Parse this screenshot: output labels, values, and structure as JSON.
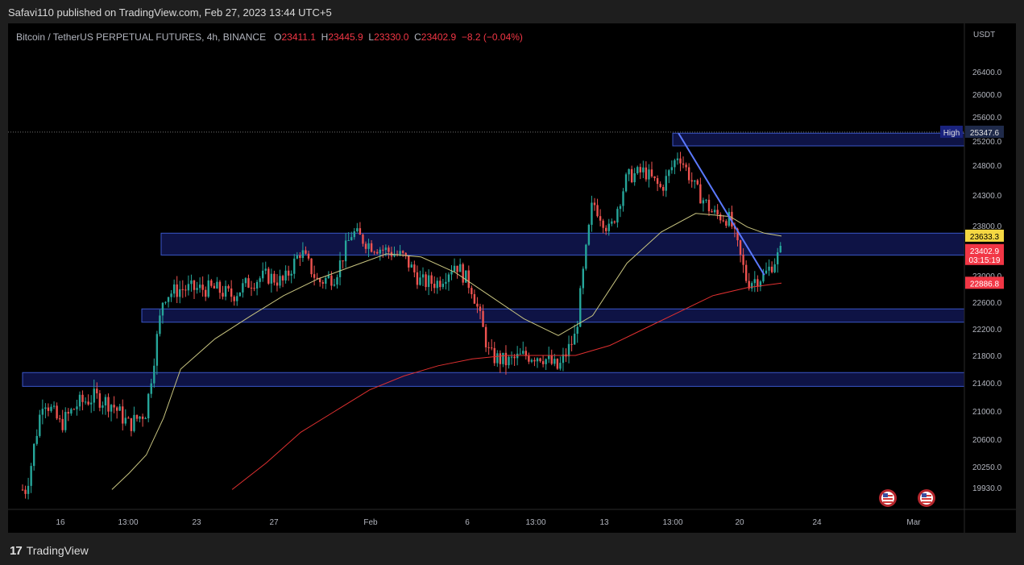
{
  "caption": "Safavi110 published on TradingView.com, Feb 27, 2023 13:44 UTC+5",
  "legend": {
    "symbol": "Bitcoin / TetherUS PERPETUAL FUTURES, 4h, BINANCE",
    "o_label": "O",
    "o_value": "23411.1",
    "h_label": "H",
    "h_value": "23445.9",
    "l_label": "L",
    "l_value": "23330.0",
    "c_label": "C",
    "c_value": "23402.9",
    "change": "−8.2 (−0.04%)"
  },
  "currency": "USDT",
  "footer": {
    "brand": "TradingView",
    "logo_glyph": "17"
  },
  "colors": {
    "up": "#26a69a",
    "down": "#ef5350",
    "zone_fill": "#1a237e",
    "zone_border": "#3a56c8",
    "ma_short": "#c8c480",
    "ma_long": "#e03030",
    "trendline": "#5b79ff",
    "tag_high_line": "#8a8a8a",
    "tag_yellow": "#f5d742",
    "tag_red": "#f23645"
  },
  "chart_data": {
    "type": "candlestick",
    "title": "",
    "yticks": [
      26400.0,
      26000.0,
      25600.0,
      25200.0,
      24800.0,
      24300.0,
      23800.0,
      23000.0,
      22600.0,
      22200.0,
      21800.0,
      21400.0,
      21000.0,
      20600.0,
      20250.0,
      19930.0
    ],
    "xticks": [
      "16",
      "13:00",
      "23",
      "27",
      "Feb",
      "6",
      "13:00",
      "13",
      "13:00",
      "20",
      "24",
      "Mar"
    ],
    "price_tags": [
      {
        "label": "High",
        "value": "25347.6",
        "style": "dark"
      },
      {
        "label": "",
        "value": "23633.3",
        "style": "yellow"
      },
      {
        "label": "",
        "value": "23402.9",
        "extra": "03:15:19",
        "style": "red"
      },
      {
        "label": "",
        "value": "22886.8",
        "style": "red"
      }
    ],
    "zones": [
      {
        "top": 25330,
        "bottom": 25120
      },
      {
        "top": 23680,
        "bottom": 23330
      },
      {
        "top": 22500,
        "bottom": 22300
      },
      {
        "top": 21550,
        "bottom": 21350
      }
    ],
    "trendline": {
      "start": [
        "2023-02-21",
        25330
      ],
      "end": [
        "2023-02-26",
        23010
      ]
    },
    "close_path": [
      [
        "2023-01-14",
        19900
      ],
      [
        "2023-01-15",
        21200
      ],
      [
        "2023-01-16",
        20800
      ],
      [
        "2023-01-17",
        21100
      ],
      [
        "2023-01-18",
        21200
      ],
      [
        "2023-01-19",
        21100
      ],
      [
        "2023-01-20",
        20800
      ],
      [
        "2023-01-21",
        21000
      ],
      [
        "2023-01-22",
        22700
      ],
      [
        "2023-01-23",
        22800
      ],
      [
        "2023-01-24",
        22800
      ],
      [
        "2023-01-25",
        22800
      ],
      [
        "2023-01-26",
        22700
      ],
      [
        "2023-01-27",
        22900
      ],
      [
        "2023-01-28",
        23000
      ],
      [
        "2023-01-29",
        22900
      ],
      [
        "2023-01-30",
        23400
      ],
      [
        "2023-01-31",
        22900
      ],
      [
        "2023-02-01",
        23000
      ],
      [
        "2023-02-02",
        23700
      ],
      [
        "2023-02-03",
        23500
      ],
      [
        "2023-02-04",
        23400
      ],
      [
        "2023-02-05",
        23300
      ],
      [
        "2023-02-06",
        22900
      ],
      [
        "2023-02-07",
        22900
      ],
      [
        "2023-02-08",
        23200
      ],
      [
        "2023-02-09",
        22800
      ],
      [
        "2023-02-10",
        21800
      ],
      [
        "2023-02-11",
        21700
      ],
      [
        "2023-02-12",
        21800
      ],
      [
        "2023-02-13",
        21800
      ],
      [
        "2023-02-14",
        21600
      ],
      [
        "2023-02-15",
        22100
      ],
      [
        "2023-02-16",
        24200
      ],
      [
        "2023-02-17",
        23700
      ],
      [
        "2023-02-18",
        24600
      ],
      [
        "2023-02-19",
        24700
      ],
      [
        "2023-02-20",
        24400
      ],
      [
        "2023-02-21",
        25000
      ],
      [
        "2023-02-22",
        24400
      ],
      [
        "2023-02-23",
        24000
      ],
      [
        "2023-02-24",
        23900
      ],
      [
        "2023-02-25",
        22900
      ],
      [
        "2023-02-26",
        23000
      ],
      [
        "2023-02-27",
        23402.9
      ]
    ],
    "ma_short_path": [
      [
        "2023-01-19",
        19900
      ],
      [
        "2023-01-20",
        20150
      ],
      [
        "2023-01-21",
        20400
      ],
      [
        "2023-01-22",
        20900
      ],
      [
        "2023-01-23",
        21600
      ],
      [
        "2023-01-25",
        22050
      ],
      [
        "2023-01-27",
        22380
      ],
      [
        "2023-01-29",
        22700
      ],
      [
        "2023-01-31",
        22950
      ],
      [
        "2023-02-02",
        23150
      ],
      [
        "2023-02-04",
        23350
      ],
      [
        "2023-02-06",
        23300
      ],
      [
        "2023-02-08",
        23050
      ],
      [
        "2023-02-10",
        22700
      ],
      [
        "2023-02-12",
        22350
      ],
      [
        "2023-02-14",
        22100
      ],
      [
        "2023-02-16",
        22400
      ],
      [
        "2023-02-18",
        23200
      ],
      [
        "2023-02-20",
        23700
      ],
      [
        "2023-02-22",
        24000
      ],
      [
        "2023-02-24",
        23950
      ],
      [
        "2023-02-25",
        23780
      ],
      [
        "2023-02-26",
        23680
      ],
      [
        "2023-02-27",
        23633.3
      ]
    ],
    "ma_long_path": [
      [
        "2023-01-26",
        19900
      ],
      [
        "2023-01-28",
        20300
      ],
      [
        "2023-01-30",
        20700
      ],
      [
        "2023-02-01",
        21000
      ],
      [
        "2023-02-03",
        21300
      ],
      [
        "2023-02-05",
        21500
      ],
      [
        "2023-02-07",
        21650
      ],
      [
        "2023-02-09",
        21750
      ],
      [
        "2023-02-11",
        21800
      ],
      [
        "2023-02-13",
        21800
      ],
      [
        "2023-02-15",
        21800
      ],
      [
        "2023-02-17",
        21950
      ],
      [
        "2023-02-19",
        22200
      ],
      [
        "2023-02-21",
        22450
      ],
      [
        "2023-02-23",
        22700
      ],
      [
        "2023-02-25",
        22820
      ],
      [
        "2023-02-27",
        22886.8
      ]
    ]
  }
}
